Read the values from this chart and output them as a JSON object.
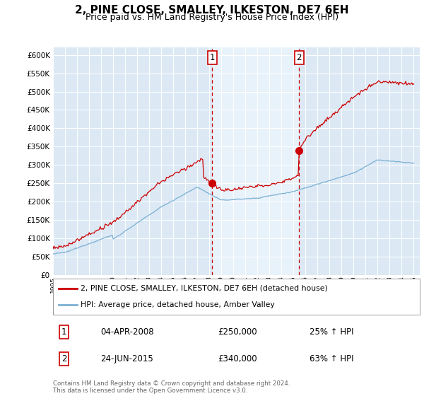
{
  "title": "2, PINE CLOSE, SMALLEY, ILKESTON, DE7 6EH",
  "subtitle": "Price paid vs. HM Land Registry's House Price Index (HPI)",
  "title_fontsize": 11,
  "subtitle_fontsize": 9,
  "background_color": "#ffffff",
  "plot_bg_color": "#dce9f5",
  "plot_bg_between": "#e8f2fa",
  "grid_color": "#cccccc",
  "ylim": [
    0,
    620000
  ],
  "yticks": [
    0,
    50000,
    100000,
    150000,
    200000,
    250000,
    300000,
    350000,
    400000,
    450000,
    500000,
    550000,
    600000
  ],
  "sale1_date": 2008.25,
  "sale1_price": 250000,
  "sale1_label": "1",
  "sale2_date": 2015.47,
  "sale2_price": 340000,
  "sale2_label": "2",
  "red_line_color": "#cc0000",
  "blue_line_color": "#7ab0d4",
  "annotation_box_color": "#cc0000",
  "legend_label_red": "2, PINE CLOSE, SMALLEY, ILKESTON, DE7 6EH (detached house)",
  "legend_label_blue": "HPI: Average price, detached house, Amber Valley",
  "table_row1": [
    "1",
    "04-APR-2008",
    "£250,000",
    "25% ↑ HPI"
  ],
  "table_row2": [
    "2",
    "24-JUN-2015",
    "£340,000",
    "63% ↑ HPI"
  ],
  "footnote": "Contains HM Land Registry data © Crown copyright and database right 2024.\nThis data is licensed under the Open Government Licence v3.0.",
  "xmin": 1995,
  "xmax": 2025.5
}
